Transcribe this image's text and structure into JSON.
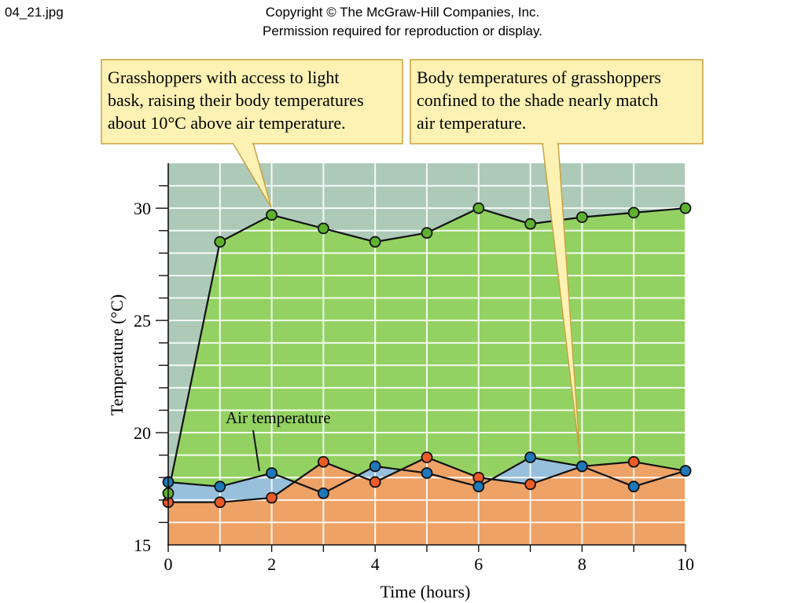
{
  "page": {
    "filename": "04_21.jpg",
    "copyright_line1": "Copyright © The McGraw-Hill Companies, Inc.",
    "copyright_line2": "Permission required for reproduction or display."
  },
  "callouts": [
    {
      "lines": [
        "Grasshoppers with access to light",
        "bask, raising their body temperatures",
        "about 10°C above air temperature."
      ]
    },
    {
      "lines": [
        "Body temperatures of grasshoppers",
        "confined to the shade nearly match",
        "air temperature."
      ]
    }
  ],
  "colors": {
    "background_region": "#adc9b8",
    "sun_fill": "#93d262",
    "sun_marker": "#5fb22e",
    "air_fill": "#98c0dd",
    "air_marker": "#1f78b8",
    "shade_fill": "#eea266",
    "shade_marker": "#ec5b26",
    "callout_fill": "#fdf2b4",
    "callout_border": "#c9a23f"
  },
  "chart_data": {
    "type": "line",
    "xlabel": "Time (hours)",
    "ylabel": "Temperature (°C)",
    "xlim": [
      0,
      10
    ],
    "ylim": [
      15,
      32
    ],
    "x_ticks": [
      0,
      2,
      4,
      6,
      8,
      10
    ],
    "y_ticks": [
      15,
      20,
      25,
      30
    ],
    "grid": true,
    "x": [
      0,
      1,
      2,
      3,
      4,
      5,
      6,
      7,
      8,
      9,
      10
    ],
    "series": [
      {
        "id": "sun",
        "values": [
          17.3,
          28.5,
          29.7,
          29.1,
          28.5,
          28.9,
          30.0,
          29.3,
          29.6,
          29.8,
          30.0
        ]
      },
      {
        "id": "air",
        "name": "Air temperature",
        "values": [
          17.8,
          17.6,
          18.2,
          17.3,
          18.5,
          18.2,
          17.6,
          18.9,
          18.5,
          17.6,
          18.3
        ]
      },
      {
        "id": "shade",
        "values": [
          16.9,
          16.9,
          17.1,
          18.7,
          17.8,
          18.9,
          18.0,
          17.7,
          18.5,
          18.7,
          18.3
        ]
      }
    ],
    "annotations": [
      "Air temperature"
    ]
  }
}
